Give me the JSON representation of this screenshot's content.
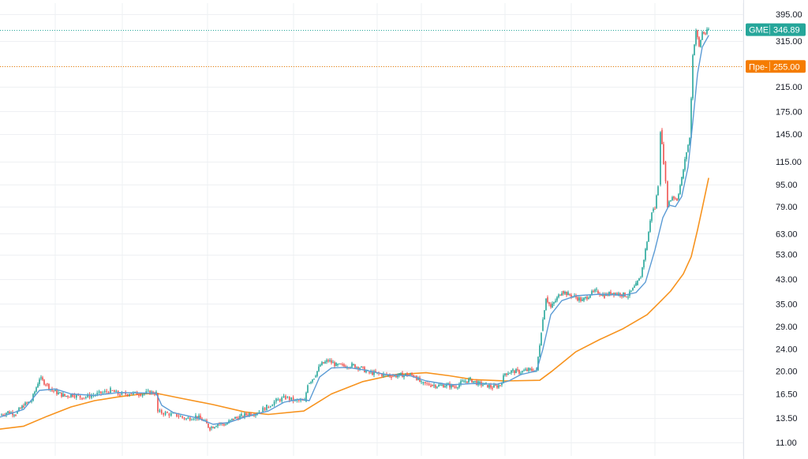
{
  "chart_data": {
    "type": "line",
    "title": "",
    "xlabel": "",
    "ylabel": "",
    "y_scale": "log",
    "ylim": [
      11,
      400
    ],
    "grid": true,
    "y_ticks": [
      "395.00",
      "315.00",
      "255.00",
      "215.00",
      "175.00",
      "145.00",
      "115.00",
      "95.00",
      "79.00",
      "63.00",
      "53.00",
      "43.00",
      "35.00",
      "29.00",
      "24.00",
      "20.00",
      "16.50",
      "13.50",
      "11.00"
    ],
    "badges": [
      {
        "name": "GME",
        "value": "346.89",
        "label_color": "#26a69a"
      },
      {
        "name": "Пре-",
        "value": "255.00",
        "label_color": "#f57c00"
      }
    ],
    "colors": {
      "price_up": "#26a69a",
      "price_down": "#ef5350",
      "fast_ma": "#5b9bd5",
      "slow_ma": "#f7931e",
      "grid": "#eef0f3"
    },
    "series": [
      {
        "key": "price",
        "points": [
          [
            0,
            13.8
          ],
          [
            10,
            14.2
          ],
          [
            20,
            14.0
          ],
          [
            30,
            15.0
          ],
          [
            40,
            15.6
          ],
          [
            50,
            18.8
          ],
          [
            58,
            18.0
          ],
          [
            66,
            17.0
          ],
          [
            74,
            16.6
          ],
          [
            82,
            16.2
          ],
          [
            92,
            16.4
          ],
          [
            104,
            16.0
          ],
          [
            116,
            16.3
          ],
          [
            128,
            16.6
          ],
          [
            140,
            17.0
          ],
          [
            152,
            16.4
          ],
          [
            164,
            16.6
          ],
          [
            176,
            16.5
          ],
          [
            190,
            16.7
          ],
          [
            198,
            16.6
          ],
          [
            200,
            14.2
          ],
          [
            212,
            14.0
          ],
          [
            224,
            13.8
          ],
          [
            236,
            13.4
          ],
          [
            248,
            13.7
          ],
          [
            258,
            13.2
          ],
          [
            266,
            12.4
          ],
          [
            276,
            12.9
          ],
          [
            286,
            12.8
          ],
          [
            296,
            13.4
          ],
          [
            306,
            13.7
          ],
          [
            316,
            14.0
          ],
          [
            326,
            14.1
          ],
          [
            338,
            14.8
          ],
          [
            350,
            15.6
          ],
          [
            362,
            16.0
          ],
          [
            374,
            15.6
          ],
          [
            386,
            15.5
          ],
          [
            390,
            18.0
          ],
          [
            398,
            19.0
          ],
          [
            406,
            21.0
          ],
          [
            416,
            21.8
          ],
          [
            426,
            21.0
          ],
          [
            436,
            20.8
          ],
          [
            446,
            21.0
          ],
          [
            456,
            20.6
          ],
          [
            466,
            19.8
          ],
          [
            476,
            19.6
          ],
          [
            486,
            19.4
          ],
          [
            496,
            19.2
          ],
          [
            506,
            19.3
          ],
          [
            516,
            19.4
          ],
          [
            526,
            19.2
          ],
          [
            534,
            18.0
          ],
          [
            546,
            17.8
          ],
          [
            556,
            17.7
          ],
          [
            566,
            17.8
          ],
          [
            576,
            17.5
          ],
          [
            586,
            18.2
          ],
          [
            596,
            18.6
          ],
          [
            606,
            18.0
          ],
          [
            616,
            17.8
          ],
          [
            624,
            17.4
          ],
          [
            634,
            17.8
          ],
          [
            640,
            19.6
          ],
          [
            650,
            20.0
          ],
          [
            660,
            19.8
          ],
          [
            670,
            20.2
          ],
          [
            680,
            20.1
          ],
          [
            686,
            28.0
          ],
          [
            692,
            37.0
          ],
          [
            698,
            34.0
          ],
          [
            704,
            36.0
          ],
          [
            712,
            39.0
          ],
          [
            720,
            38.0
          ],
          [
            730,
            37.0
          ],
          [
            738,
            36.0
          ],
          [
            748,
            38.0
          ],
          [
            756,
            39.0
          ],
          [
            766,
            37.5
          ],
          [
            776,
            38.5
          ],
          [
            786,
            38.0
          ],
          [
            796,
            37.5
          ],
          [
            806,
            41.0
          ],
          [
            812,
            44.0
          ],
          [
            818,
            55.0
          ],
          [
            822,
            64.0
          ],
          [
            826,
            76.0
          ],
          [
            830,
            78.0
          ],
          [
            834,
            95.0
          ],
          [
            837,
            150.0
          ],
          [
            841,
            115.0
          ],
          [
            846,
            80.0
          ],
          [
            852,
            86.0
          ],
          [
            858,
            84.0
          ],
          [
            864,
            100.0
          ],
          [
            870,
            125.0
          ],
          [
            874,
            140.0
          ],
          [
            878,
            280.0
          ],
          [
            882,
            345.0
          ],
          [
            886,
            300.0
          ],
          [
            890,
            340.0
          ],
          [
            894,
            335.0
          ],
          [
            898,
            346.89
          ]
        ]
      },
      {
        "key": "fast_ma",
        "points": [
          [
            0,
            13.6
          ],
          [
            30,
            14.5
          ],
          [
            50,
            17.0
          ],
          [
            70,
            17.2
          ],
          [
            90,
            16.5
          ],
          [
            120,
            16.3
          ],
          [
            150,
            16.7
          ],
          [
            198,
            16.6
          ],
          [
            205,
            15.0
          ],
          [
            220,
            14.1
          ],
          [
            250,
            13.5
          ],
          [
            270,
            12.8
          ],
          [
            290,
            13.0
          ],
          [
            310,
            13.6
          ],
          [
            340,
            14.3
          ],
          [
            360,
            15.4
          ],
          [
            380,
            15.8
          ],
          [
            392,
            15.6
          ],
          [
            405,
            19.0
          ],
          [
            420,
            20.5
          ],
          [
            440,
            20.6
          ],
          [
            460,
            20.2
          ],
          [
            490,
            19.4
          ],
          [
            520,
            19.2
          ],
          [
            540,
            18.4
          ],
          [
            570,
            17.8
          ],
          [
            600,
            18.0
          ],
          [
            630,
            17.9
          ],
          [
            645,
            18.4
          ],
          [
            660,
            19.4
          ],
          [
            680,
            20.0
          ],
          [
            688,
            24.0
          ],
          [
            698,
            32.0
          ],
          [
            712,
            36.0
          ],
          [
            730,
            37.5
          ],
          [
            760,
            38.0
          ],
          [
            790,
            37.6
          ],
          [
            806,
            38.5
          ],
          [
            818,
            42.0
          ],
          [
            830,
            55.0
          ],
          [
            840,
            72.0
          ],
          [
            848,
            80.0
          ],
          [
            856,
            79.0
          ],
          [
            864,
            86.0
          ],
          [
            872,
            110.0
          ],
          [
            878,
            160.0
          ],
          [
            884,
            240.0
          ],
          [
            890,
            300.0
          ],
          [
            898,
            330.0
          ]
        ]
      },
      {
        "key": "slow_ma",
        "points": [
          [
            0,
            12.3
          ],
          [
            30,
            12.6
          ],
          [
            60,
            13.7
          ],
          [
            90,
            14.8
          ],
          [
            120,
            15.6
          ],
          [
            150,
            16.1
          ],
          [
            180,
            16.5
          ],
          [
            198,
            16.6
          ],
          [
            230,
            15.9
          ],
          [
            270,
            15.1
          ],
          [
            310,
            14.2
          ],
          [
            340,
            13.9
          ],
          [
            385,
            14.3
          ],
          [
            420,
            16.5
          ],
          [
            460,
            18.3
          ],
          [
            500,
            19.4
          ],
          [
            540,
            19.7
          ],
          [
            570,
            19.2
          ],
          [
            600,
            18.6
          ],
          [
            640,
            18.4
          ],
          [
            684,
            18.5
          ],
          [
            700,
            20.0
          ],
          [
            730,
            23.5
          ],
          [
            760,
            26.0
          ],
          [
            790,
            28.5
          ],
          [
            820,
            32.0
          ],
          [
            838,
            36.0
          ],
          [
            850,
            39.0
          ],
          [
            866,
            45.0
          ],
          [
            876,
            52.0
          ],
          [
            884,
            65.0
          ],
          [
            890,
            78.0
          ],
          [
            898,
            100.0
          ]
        ]
      }
    ]
  }
}
